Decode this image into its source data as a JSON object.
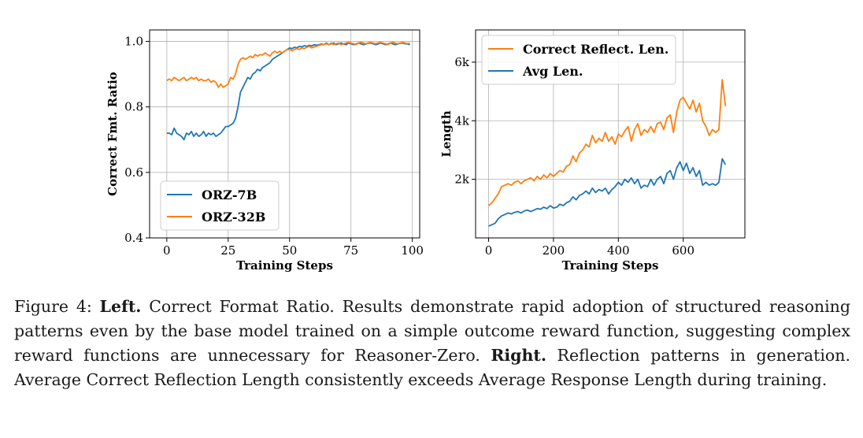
{
  "chart_data": [
    {
      "type": "line",
      "xlabel": "Training Steps",
      "ylabel": "Correct Fmt. Ratio",
      "xlim": [
        -7,
        103
      ],
      "ylim": [
        0.4,
        1.035
      ],
      "xticks": [
        0,
        25,
        50,
        75,
        100
      ],
      "xtick_labels": [
        "0",
        "25",
        "50",
        "75",
        "100"
      ],
      "yticks": [
        0.4,
        0.6,
        0.8,
        1.0
      ],
      "ytick_labels": [
        "0.4",
        "0.6",
        "0.8",
        "1.0"
      ],
      "grid": true,
      "legend_position": "lower-left",
      "series": [
        {
          "name": "ORZ-7B",
          "color": "#1f77b4",
          "x": [
            0,
            1,
            2,
            3,
            4,
            5,
            6,
            7,
            8,
            9,
            10,
            11,
            12,
            13,
            14,
            15,
            16,
            17,
            18,
            19,
            20,
            21,
            22,
            23,
            24,
            25,
            26,
            27,
            28,
            29,
            30,
            31,
            32,
            33,
            34,
            35,
            36,
            37,
            38,
            39,
            40,
            41,
            42,
            43,
            44,
            45,
            46,
            47,
            48,
            49,
            50,
            51,
            52,
            53,
            54,
            55,
            56,
            57,
            58,
            59,
            60,
            61,
            62,
            63,
            64,
            65,
            66,
            67,
            68,
            69,
            70,
            71,
            72,
            73,
            74,
            75,
            76,
            77,
            78,
            79,
            80,
            81,
            82,
            83,
            84,
            85,
            86,
            87,
            88,
            89,
            90,
            91,
            92,
            93,
            94,
            95,
            96,
            97,
            98,
            99
          ],
          "y": [
            0.72,
            0.72,
            0.715,
            0.735,
            0.72,
            0.715,
            0.71,
            0.7,
            0.72,
            0.715,
            0.725,
            0.71,
            0.72,
            0.71,
            0.715,
            0.725,
            0.71,
            0.72,
            0.715,
            0.72,
            0.71,
            0.715,
            0.72,
            0.73,
            0.74,
            0.74,
            0.745,
            0.75,
            0.765,
            0.8,
            0.845,
            0.86,
            0.875,
            0.89,
            0.885,
            0.9,
            0.905,
            0.915,
            0.91,
            0.92,
            0.925,
            0.93,
            0.935,
            0.945,
            0.95,
            0.955,
            0.96,
            0.965,
            0.97,
            0.975,
            0.98,
            0.978,
            0.982,
            0.98,
            0.985,
            0.983,
            0.987,
            0.985,
            0.988,
            0.986,
            0.99,
            0.988,
            0.99,
            0.992,
            0.99,
            0.995,
            0.99,
            0.993,
            0.995,
            0.99,
            0.993,
            0.995,
            0.992,
            0.99,
            0.995,
            0.993,
            0.99,
            0.992,
            0.995,
            0.993,
            0.99,
            0.992,
            0.994,
            0.995,
            0.993,
            0.99,
            0.992,
            0.995,
            0.993,
            0.99,
            0.992,
            0.995,
            0.993,
            0.99,
            0.992,
            0.994,
            0.995,
            0.993,
            0.992,
            0.99
          ]
        },
        {
          "name": "ORZ-32B",
          "color": "#ff7f0e",
          "x": [
            0,
            1,
            2,
            3,
            4,
            5,
            6,
            7,
            8,
            9,
            10,
            11,
            12,
            13,
            14,
            15,
            16,
            17,
            18,
            19,
            20,
            21,
            22,
            23,
            24,
            25,
            26,
            27,
            28,
            29,
            30,
            31,
            32,
            33,
            34,
            35,
            36,
            37,
            38,
            39,
            40,
            41,
            42,
            43,
            44,
            45,
            46,
            47,
            48,
            49,
            50,
            51,
            52,
            53,
            54,
            55,
            56,
            57,
            58,
            59,
            60,
            61,
            62,
            63,
            64,
            65,
            66,
            67,
            68,
            69,
            70,
            71,
            72,
            73,
            74,
            75,
            76,
            77,
            78,
            79,
            80,
            81,
            82,
            83,
            84,
            85,
            86,
            87,
            88,
            89,
            90,
            91,
            92,
            93,
            94,
            95,
            96,
            97,
            98,
            99
          ],
          "y": [
            0.88,
            0.885,
            0.88,
            0.89,
            0.885,
            0.88,
            0.885,
            0.89,
            0.88,
            0.885,
            0.89,
            0.885,
            0.89,
            0.88,
            0.885,
            0.88,
            0.88,
            0.885,
            0.875,
            0.88,
            0.875,
            0.86,
            0.87,
            0.86,
            0.865,
            0.87,
            0.89,
            0.885,
            0.9,
            0.93,
            0.945,
            0.95,
            0.945,
            0.95,
            0.955,
            0.95,
            0.96,
            0.955,
            0.96,
            0.958,
            0.965,
            0.96,
            0.955,
            0.965,
            0.97,
            0.965,
            0.97,
            0.965,
            0.97,
            0.975,
            0.975,
            0.972,
            0.975,
            0.978,
            0.975,
            0.98,
            0.978,
            0.982,
            0.985,
            0.98,
            0.983,
            0.985,
            0.988,
            0.99,
            0.99,
            0.993,
            0.99,
            0.995,
            0.99,
            0.993,
            0.995,
            0.99,
            0.993,
            0.995,
            0.997,
            0.995,
            0.993,
            0.99,
            0.995,
            0.997,
            0.995,
            0.993,
            0.995,
            0.997,
            0.995,
            0.993,
            0.995,
            0.997,
            0.995,
            0.993,
            0.99,
            0.995,
            0.997,
            0.995,
            0.993,
            0.995,
            0.997,
            0.995,
            0.993,
            0.995
          ]
        }
      ]
    },
    {
      "type": "line",
      "xlabel": "Training Steps",
      "ylabel": "Length",
      "xlim": [
        -40,
        790
      ],
      "ylim": [
        0,
        7100
      ],
      "xticks": [
        0,
        200,
        400,
        600
      ],
      "xtick_labels": [
        "0",
        "200",
        "400",
        "600"
      ],
      "yticks": [
        2000,
        4000,
        6000
      ],
      "ytick_labels": [
        "2k",
        "4k",
        "6k"
      ],
      "grid": true,
      "legend_position": "upper-left",
      "series": [
        {
          "name": "Correct Reflect. Len.",
          "color": "#ff7f0e",
          "x": [
            0,
            10,
            20,
            30,
            40,
            50,
            60,
            70,
            80,
            90,
            100,
            110,
            120,
            130,
            140,
            150,
            160,
            170,
            180,
            190,
            200,
            210,
            220,
            230,
            240,
            250,
            260,
            270,
            280,
            290,
            300,
            310,
            320,
            330,
            340,
            350,
            360,
            370,
            380,
            390,
            400,
            410,
            420,
            430,
            440,
            450,
            460,
            470,
            480,
            490,
            500,
            510,
            520,
            530,
            540,
            550,
            560,
            570,
            580,
            590,
            600,
            610,
            620,
            630,
            640,
            650,
            660,
            670,
            680,
            690,
            700,
            710,
            720,
            730
          ],
          "y": [
            1100,
            1200,
            1350,
            1500,
            1750,
            1800,
            1850,
            1800,
            1900,
            1950,
            1850,
            1950,
            2000,
            2050,
            1950,
            2100,
            2000,
            2150,
            2050,
            2200,
            2100,
            2200,
            2300,
            2250,
            2450,
            2500,
            2800,
            2600,
            2900,
            3000,
            3200,
            3100,
            3500,
            3250,
            3400,
            3300,
            3600,
            3300,
            3450,
            3200,
            3550,
            3450,
            3650,
            3800,
            3300,
            3700,
            3900,
            3500,
            3700,
            3600,
            3800,
            3600,
            3900,
            3950,
            3700,
            4100,
            4200,
            3600,
            4300,
            4700,
            4800,
            4600,
            4400,
            4700,
            4300,
            4600,
            4000,
            3800,
            3500,
            3700,
            3600,
            3700,
            5400,
            4500
          ]
        },
        {
          "name": "Avg Len.",
          "color": "#1f77b4",
          "x": [
            0,
            10,
            20,
            30,
            40,
            50,
            60,
            70,
            80,
            90,
            100,
            110,
            120,
            130,
            140,
            150,
            160,
            170,
            180,
            190,
            200,
            210,
            220,
            230,
            240,
            250,
            260,
            270,
            280,
            290,
            300,
            310,
            320,
            330,
            340,
            350,
            360,
            370,
            380,
            390,
            400,
            410,
            420,
            430,
            440,
            450,
            460,
            470,
            480,
            490,
            500,
            510,
            520,
            530,
            540,
            550,
            560,
            570,
            580,
            590,
            600,
            610,
            620,
            630,
            640,
            650,
            660,
            670,
            680,
            690,
            700,
            710,
            720,
            730
          ],
          "y": [
            400,
            450,
            500,
            650,
            750,
            800,
            850,
            820,
            870,
            900,
            850,
            920,
            950,
            900,
            950,
            1000,
            980,
            1050,
            1000,
            1100,
            1020,
            1050,
            1150,
            1100,
            1200,
            1250,
            1400,
            1300,
            1450,
            1500,
            1600,
            1500,
            1700,
            1550,
            1650,
            1600,
            1700,
            1500,
            1650,
            1750,
            1900,
            1800,
            2000,
            1900,
            2050,
            1850,
            2000,
            1700,
            1800,
            1750,
            2000,
            1800,
            2000,
            2100,
            1850,
            2200,
            2300,
            2000,
            2400,
            2600,
            2300,
            2550,
            2200,
            2400,
            2100,
            2300,
            1800,
            1900,
            1800,
            1850,
            1800,
            1900,
            2700,
            2500
          ]
        }
      ]
    }
  ],
  "caption": {
    "figure_label": "Figure 4: ",
    "left_label": "Left.",
    "left_text": " Correct Format Ratio. Results demonstrate rapid adoption of structured reasoning patterns even by the base model trained on a simple outcome reward function, suggesting complex reward functions are unnecessary for Reasoner-Zero. ",
    "right_label": "Right.",
    "right_text": " Reflection patterns in generation. Average Correct Reflection Length consistently exceeds Average Response Length during training."
  }
}
